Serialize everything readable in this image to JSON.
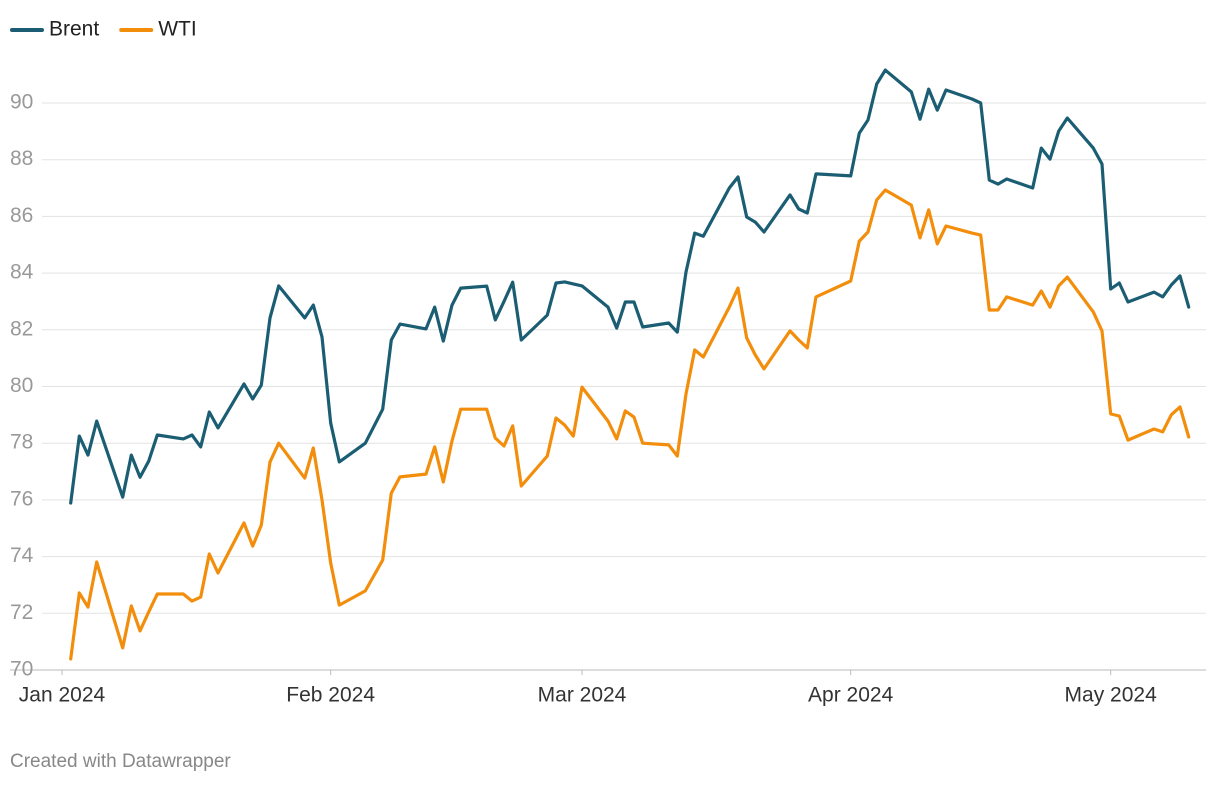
{
  "chart_data": {
    "type": "line",
    "credit": "Created with Datawrapper",
    "x": [
      1,
      2,
      3,
      4,
      7,
      8,
      9,
      10,
      11,
      14,
      15,
      16,
      17,
      18,
      21,
      22,
      23,
      24,
      25,
      28,
      29,
      30,
      31,
      32,
      35,
      37,
      38,
      39,
      42,
      43,
      44,
      45,
      46,
      49,
      50,
      51,
      52,
      53,
      56,
      57,
      58,
      59,
      60,
      63,
      64,
      65,
      66,
      67,
      70,
      71,
      72,
      73,
      74,
      77,
      78,
      79,
      80,
      81,
      84,
      85,
      86,
      87,
      91,
      92,
      93,
      94,
      95,
      98,
      99,
      100,
      101,
      102,
      105,
      106,
      107,
      108,
      109,
      112,
      113,
      114,
      115,
      116,
      119,
      120,
      121,
      122,
      123,
      126,
      127,
      128,
      129,
      130
    ],
    "series": [
      {
        "name": "Brent",
        "color": "#1b5e73",
        "values": [
          75.89,
          78.25,
          77.58,
          78.78,
          76.1,
          77.58,
          76.8,
          77.37,
          78.29,
          78.15,
          78.29,
          77.87,
          79.1,
          78.54,
          80.09,
          79.56,
          80.05,
          82.42,
          83.55,
          82.42,
          82.87,
          81.75,
          78.71,
          77.34,
          78.0,
          79.2,
          81.64,
          82.2,
          82.03,
          82.8,
          81.6,
          82.87,
          83.47,
          83.54,
          82.35,
          83.0,
          83.68,
          81.64,
          82.52,
          83.65,
          83.69,
          83.62,
          83.55,
          82.8,
          82.06,
          82.98,
          82.98,
          82.1,
          82.24,
          81.92,
          84.04,
          85.41,
          85.3,
          87.0,
          87.39,
          85.98,
          85.8,
          85.45,
          86.76,
          86.26,
          86.12,
          87.5,
          87.43,
          88.94,
          89.4,
          90.67,
          91.16,
          90.39,
          89.43,
          90.49,
          89.75,
          90.46,
          90.14,
          90.0,
          87.28,
          87.14,
          87.32,
          87.0,
          88.41,
          88.02,
          89.01,
          89.47,
          88.41,
          87.85,
          83.44,
          83.65,
          82.98,
          83.33,
          83.16,
          83.58,
          83.9,
          82.8
        ]
      },
      {
        "name": "WTI",
        "color": "#f28e0c",
        "values": [
          70.39,
          72.72,
          72.22,
          73.81,
          70.78,
          72.26,
          71.38,
          72.05,
          72.68,
          72.68,
          72.43,
          72.57,
          74.09,
          73.42,
          75.19,
          74.37,
          75.11,
          77.34,
          78.0,
          76.77,
          77.83,
          76.0,
          73.77,
          72.29,
          72.79,
          73.88,
          76.24,
          76.81,
          76.91,
          77.87,
          76.63,
          78.08,
          79.2,
          79.2,
          78.18,
          77.9,
          78.61,
          76.49,
          77.55,
          78.89,
          78.64,
          78.25,
          79.98,
          78.78,
          78.15,
          79.14,
          78.92,
          78.0,
          77.94,
          77.55,
          79.74,
          81.29,
          81.04,
          82.8,
          83.47,
          81.71,
          81.11,
          80.62,
          81.96,
          81.64,
          81.36,
          83.16,
          83.72,
          85.13,
          85.45,
          86.58,
          86.93,
          86.4,
          85.24,
          86.23,
          85.03,
          85.66,
          85.41,
          85.34,
          82.7,
          82.7,
          83.16,
          82.87,
          83.37,
          82.8,
          83.55,
          83.86,
          82.63,
          81.96,
          79.03,
          78.96,
          78.11,
          78.5,
          78.4,
          79.0,
          79.28,
          78.22
        ]
      }
    ],
    "xlim": [
      -6,
      132
    ],
    "xticks": [
      {
        "value": 0,
        "label": "Jan 2024"
      },
      {
        "value": 31,
        "label": "Feb 2024"
      },
      {
        "value": 60,
        "label": "Mar 2024"
      },
      {
        "value": 91,
        "label": "Apr 2024"
      },
      {
        "value": 121,
        "label": "May 2024"
      }
    ],
    "ylim": [
      70,
      92
    ],
    "yticks": [
      70,
      72,
      74,
      76,
      78,
      80,
      82,
      84,
      86,
      88,
      90
    ],
    "grid": true,
    "legend": "top-left"
  }
}
